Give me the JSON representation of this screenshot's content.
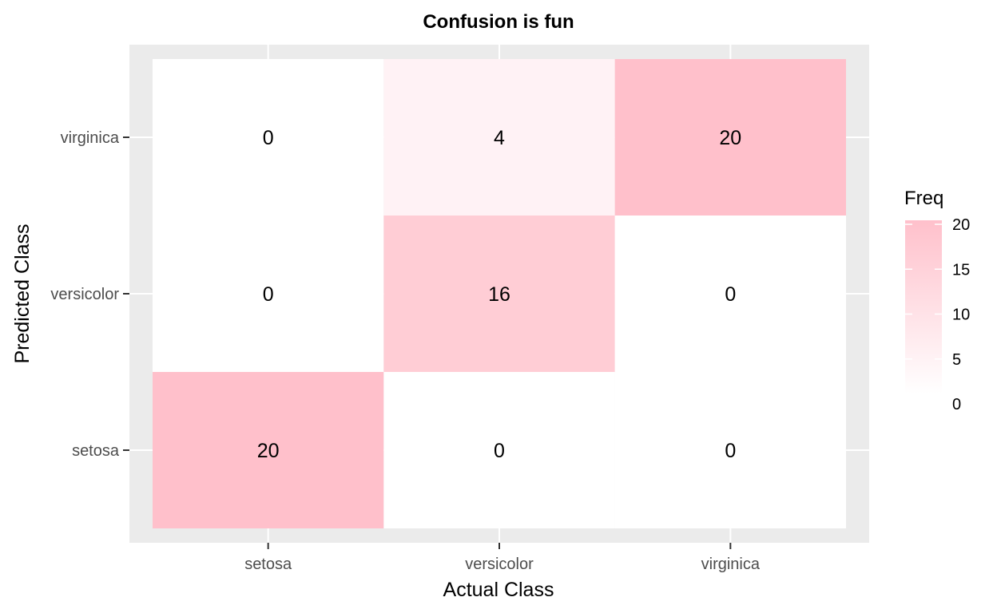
{
  "chart_data": {
    "type": "heatmap",
    "title": "Confusion is fun",
    "xlabel": "Actual Class",
    "ylabel": "Predicted Class",
    "x_categories": [
      "setosa",
      "versicolor",
      "virginica"
    ],
    "y_categories": [
      "setosa",
      "versicolor",
      "virginica"
    ],
    "cells": [
      {
        "x": "setosa",
        "y": "setosa",
        "value": 20
      },
      {
        "x": "versicolor",
        "y": "setosa",
        "value": 0
      },
      {
        "x": "virginica",
        "y": "setosa",
        "value": 0
      },
      {
        "x": "setosa",
        "y": "versicolor",
        "value": 0
      },
      {
        "x": "versicolor",
        "y": "versicolor",
        "value": 16
      },
      {
        "x": "virginica",
        "y": "versicolor",
        "value": 0
      },
      {
        "x": "setosa",
        "y": "virginica",
        "value": 0
      },
      {
        "x": "versicolor",
        "y": "virginica",
        "value": 4
      },
      {
        "x": "virginica",
        "y": "virginica",
        "value": 20
      }
    ],
    "legend": {
      "title": "Freq",
      "position": "right",
      "ticks": [
        0,
        5,
        10,
        15,
        20
      ],
      "range": [
        0,
        20
      ],
      "low_color": "#ffffff",
      "high_color": "#ffc0cb"
    },
    "grid": true,
    "panel_background": "#ebebeb"
  }
}
